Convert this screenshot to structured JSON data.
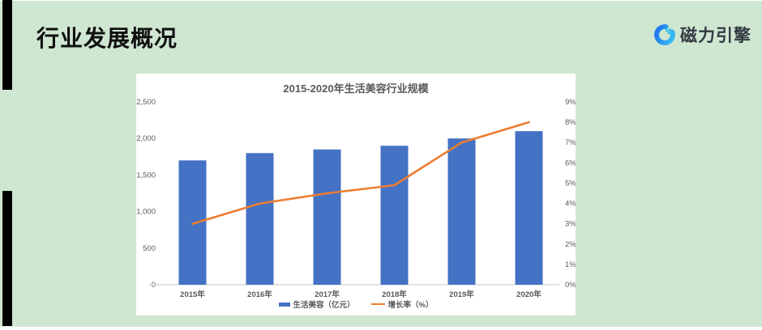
{
  "slide": {
    "title": "行业发展概况",
    "background_color": "#cfe6d1",
    "accent_bar_color": "#000000",
    "title_color": "#101010"
  },
  "logo": {
    "text": "磁力引擎",
    "icon": "magnetic-engine-c-icon",
    "icon_primary_color": "#1d6ef2",
    "icon_secondary_color": "#38c4f2",
    "ray_color": "#2fc3f0",
    "text_color": "#333a42"
  },
  "chart_data": {
    "type": "bar",
    "title": "2015-2020年生活美容行业规模",
    "categories": [
      "2015年",
      "2016年",
      "2017年",
      "2018年",
      "2019年",
      "2020年"
    ],
    "series": [
      {
        "name": "生活美容（亿元）",
        "type": "bar",
        "axis": "left",
        "color": "#4472C4",
        "values": [
          1700,
          1800,
          1850,
          1900,
          2000,
          2100
        ]
      },
      {
        "name": "增长率（%）",
        "type": "line",
        "axis": "right",
        "color": "#ED7D31",
        "values": [
          3.0,
          4.0,
          4.5,
          4.9,
          7.0,
          8.0
        ]
      }
    ],
    "left_axis": {
      "min": 0,
      "max": 2500,
      "step": 500,
      "tick_labels": [
        "0",
        "500",
        "1,000",
        "1,500",
        "2,000",
        "2,500"
      ]
    },
    "right_axis": {
      "min": 0,
      "max": 9,
      "step": 1,
      "tick_labels": [
        "0%",
        "1%",
        "2%",
        "3%",
        "4%",
        "5%",
        "6%",
        "7%",
        "8%",
        "9%"
      ]
    },
    "grid": false,
    "legend_position": "bottom",
    "panel_background": "#FFFFFF",
    "text_color": "#595959",
    "axis_line_color": "#D9D9D9"
  }
}
